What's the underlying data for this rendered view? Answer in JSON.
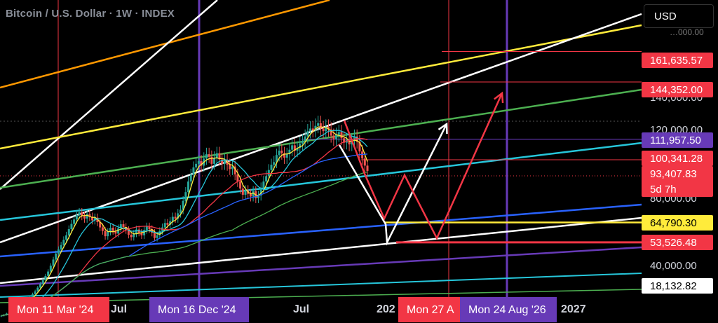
{
  "header": {
    "title": "Bitcoin / U.S. Dollar · 1W · INDEX",
    "currency_button": "USD"
  },
  "colors": {
    "background": "#000000",
    "red": "#f23645",
    "purple": "#673ab7",
    "white": "#ffffff",
    "yellow": "#ffeb3b",
    "orange": "#ff9800",
    "green": "#4caf50",
    "cyan": "#26c6da",
    "blue": "#2962ff",
    "candle_up": "#26a69a",
    "candle_down": "#ef5350"
  },
  "chart_data": {
    "type": "candlestick",
    "symbol": "Bitcoin / U.S. Dollar",
    "interval": "1W",
    "exchange": "INDEX",
    "y_axis": {
      "ticks": [
        "140,000.00",
        "120,000.00",
        "80,000.00",
        "40,000.00"
      ],
      "partial_ticks": [
        "…000.00"
      ]
    },
    "x_axis": {
      "ticks": [
        "Jul",
        "Jul",
        "202",
        "2027"
      ]
    },
    "x_markers": [
      {
        "label": "Mon 11 Mar '24",
        "color": "#f23645"
      },
      {
        "label": "Mon 16 Dec '24",
        "color": "#673ab7"
      },
      {
        "label": "Mon 27 A",
        "color": "#f23645"
      },
      {
        "label": "Mon 24 Aug '26",
        "color": "#673ab7"
      }
    ],
    "price_labels": [
      {
        "value": "161,635.57",
        "color": "#f23645",
        "text_color": "#ffffff"
      },
      {
        "value": "144,352.00",
        "color": "#f23645",
        "text_color": "#ffffff"
      },
      {
        "value": "111,957.50",
        "color": "#673ab7",
        "text_color": "#ffffff"
      },
      {
        "value": "100,341.28",
        "color": "#f23645",
        "text_color": "#ffffff"
      },
      {
        "value": "93,407.83",
        "color": "#f23645",
        "text_color": "#ffffff",
        "countdown": "5d 7h"
      },
      {
        "value": "64,790.30",
        "color": "#ffeb3b",
        "text_color": "#000000"
      },
      {
        "value": "53,526.48",
        "color": "#f23645",
        "text_color": "#ffffff"
      },
      {
        "value": "18,132.82",
        "color": "#ffffff",
        "text_color": "#000000"
      }
    ],
    "series": [
      {
        "name": "",
        "type": "candles",
        "closes": [
          12000,
          12500,
          13200,
          13000,
          14100,
          15300,
          16400,
          17600,
          18700,
          19800,
          21000,
          22400,
          24200,
          25800,
          27900,
          30000,
          32100,
          34500,
          37000,
          40300,
          43800,
          47200,
          49500,
          52000,
          55000,
          57500,
          61000,
          64000,
          66500,
          69000,
          70500,
          68500,
          67000,
          69500,
          68000,
          66000,
          67500,
          65000,
          62000,
          60000,
          57000,
          59500,
          61800,
          60000,
          58500,
          61500,
          63800,
          62200,
          60500,
          57800,
          56500,
          58500,
          60800,
          59000,
          57500,
          60500,
          62500,
          61000,
          59000,
          56000,
          57500,
          60000,
          62000,
          64500,
          63500,
          65500,
          68000,
          67000,
          70000,
          72000,
          77000,
          82000,
          88000,
          92000,
          96000,
          98000,
          99500,
          97000,
          101000,
          103500,
          102000,
          98000,
          101500,
          104000,
          100500,
          98000,
          100000,
          97500,
          95000,
          96500,
          92000,
          88000,
          84000,
          80500,
          83000,
          81000,
          79500,
          82500,
          78500,
          80000,
          84500,
          88000,
          91000,
          94500,
          97500,
          99000,
          103000,
          105500,
          104000,
          101500,
          103500,
          106000,
          108500,
          105500,
          107000,
          109500,
          111000,
          113500,
          116500,
          118000,
          117000,
          119500,
          121000,
          118000,
          116500,
          119000,
          117500,
          114000,
          112000,
          114500,
          116000,
          112500,
          110000,
          111500,
          109000,
          111500,
          113500,
          110500,
          105000,
          101000,
          97000,
          94000
        ]
      },
      {
        "name": "",
        "type": "ma",
        "color": "#ffeb3b",
        "period": 4
      },
      {
        "name": "",
        "type": "ma",
        "color": "#26c6da",
        "period": 12
      },
      {
        "name": "",
        "type": "ma",
        "color": "#f23645",
        "period": 30
      },
      {
        "name": "",
        "type": "ma",
        "color": "#2962ff",
        "period": 50
      },
      {
        "name": "",
        "type": "ma",
        "color": "#4caf50",
        "period": 90
      }
    ],
    "annotations": [
      {
        "type": "projection_path",
        "color": "#ffffff",
        "description": "drop then rally arrow"
      },
      {
        "type": "projection_path",
        "color": "#f23645",
        "description": "double bottom then rally arrow"
      }
    ]
  }
}
